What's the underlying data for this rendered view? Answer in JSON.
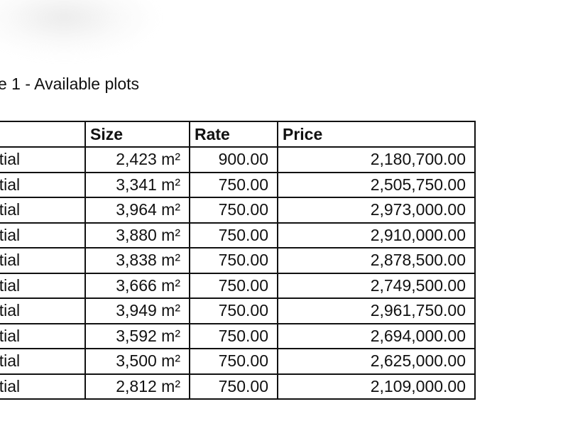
{
  "caption": "e 1 - Available plots",
  "table": {
    "headers": [
      "",
      "Size",
      "Rate",
      "Price"
    ],
    "rows": [
      {
        "type": "lential",
        "size": "2,423 m²",
        "rate": "900.00",
        "price": "2,180,700.00"
      },
      {
        "type": "lential",
        "size": "3,341 m²",
        "rate": "750.00",
        "price": "2,505,750.00"
      },
      {
        "type": "lential",
        "size": "3,964 m²",
        "rate": "750.00",
        "price": "2,973,000.00"
      },
      {
        "type": "lential",
        "size": "3,880 m²",
        "rate": "750.00",
        "price": "2,910,000.00"
      },
      {
        "type": "lential",
        "size": "3,838 m²",
        "rate": "750.00",
        "price": "2,878,500.00"
      },
      {
        "type": "lential",
        "size": "3,666 m²",
        "rate": "750.00",
        "price": "2,749,500.00"
      },
      {
        "type": "lential",
        "size": "3,949 m²",
        "rate": "750.00",
        "price": "2,961,750.00"
      },
      {
        "type": "lential",
        "size": "3,592 m²",
        "rate": "750.00",
        "price": "2,694,000.00"
      },
      {
        "type": "lential",
        "size": "3,500 m²",
        "rate": "750.00",
        "price": "2,625,000.00"
      },
      {
        "type": "lential",
        "size": "2,812 m²",
        "rate": "750.00",
        "price": "2,109,000.00"
      }
    ]
  }
}
